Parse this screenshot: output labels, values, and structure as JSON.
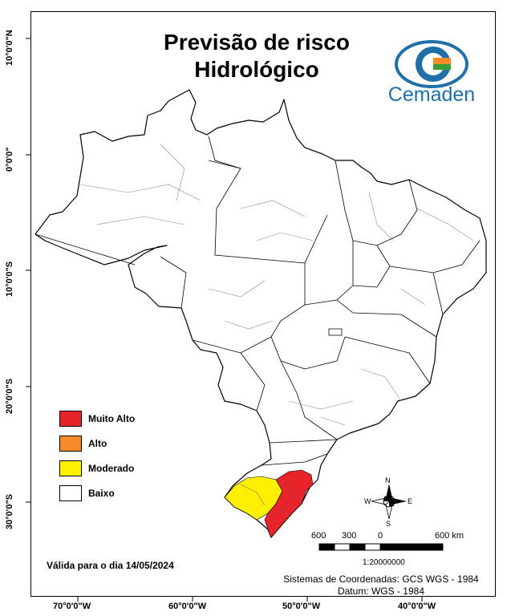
{
  "title": {
    "line1": "Previsão de risco",
    "line2": "Hidrológico"
  },
  "logo": {
    "text": "Cemaden",
    "icon": "cemaden-eye-logo-icon"
  },
  "latitude_labels": [
    "10°0'0\"N",
    "0°0'0\"",
    "10°0'0\"S",
    "20°0'0\"S",
    "30°0'0\"S"
  ],
  "longitude_labels": [
    "70°0'0\"W",
    "60°0'0\"W",
    "50°0'0\"W",
    "40°0'0\"W"
  ],
  "legend": [
    {
      "label": "Muito Alto",
      "color": "#e8242b"
    },
    {
      "label": "Alto",
      "color": "#f58a26"
    },
    {
      "label": "Moderado",
      "color": "#ffef00"
    },
    {
      "label": "Baixo",
      "color": "#ffffff"
    }
  ],
  "validity": "Válida para o dia 14/05/2024",
  "compass": {
    "n": "N",
    "s": "S",
    "e": "E",
    "w": "W",
    "icon": "north-arrow-compass-icon"
  },
  "scale": {
    "labels": [
      "600",
      "300",
      "0",
      "600 km"
    ],
    "ratio": "1:20000000"
  },
  "coordinate_system": {
    "line1": "Sistemas de Coordenadas: GCS WGS - 1984",
    "line2": "Datum: WGS - 1984"
  },
  "risk_areas": [
    {
      "region": "Rio Grande do Sul - leste",
      "level": "Muito Alto"
    },
    {
      "region": "Rio Grande do Sul - oeste",
      "level": "Moderado"
    },
    {
      "region": "demais áreas",
      "level": "Baixo"
    }
  ]
}
